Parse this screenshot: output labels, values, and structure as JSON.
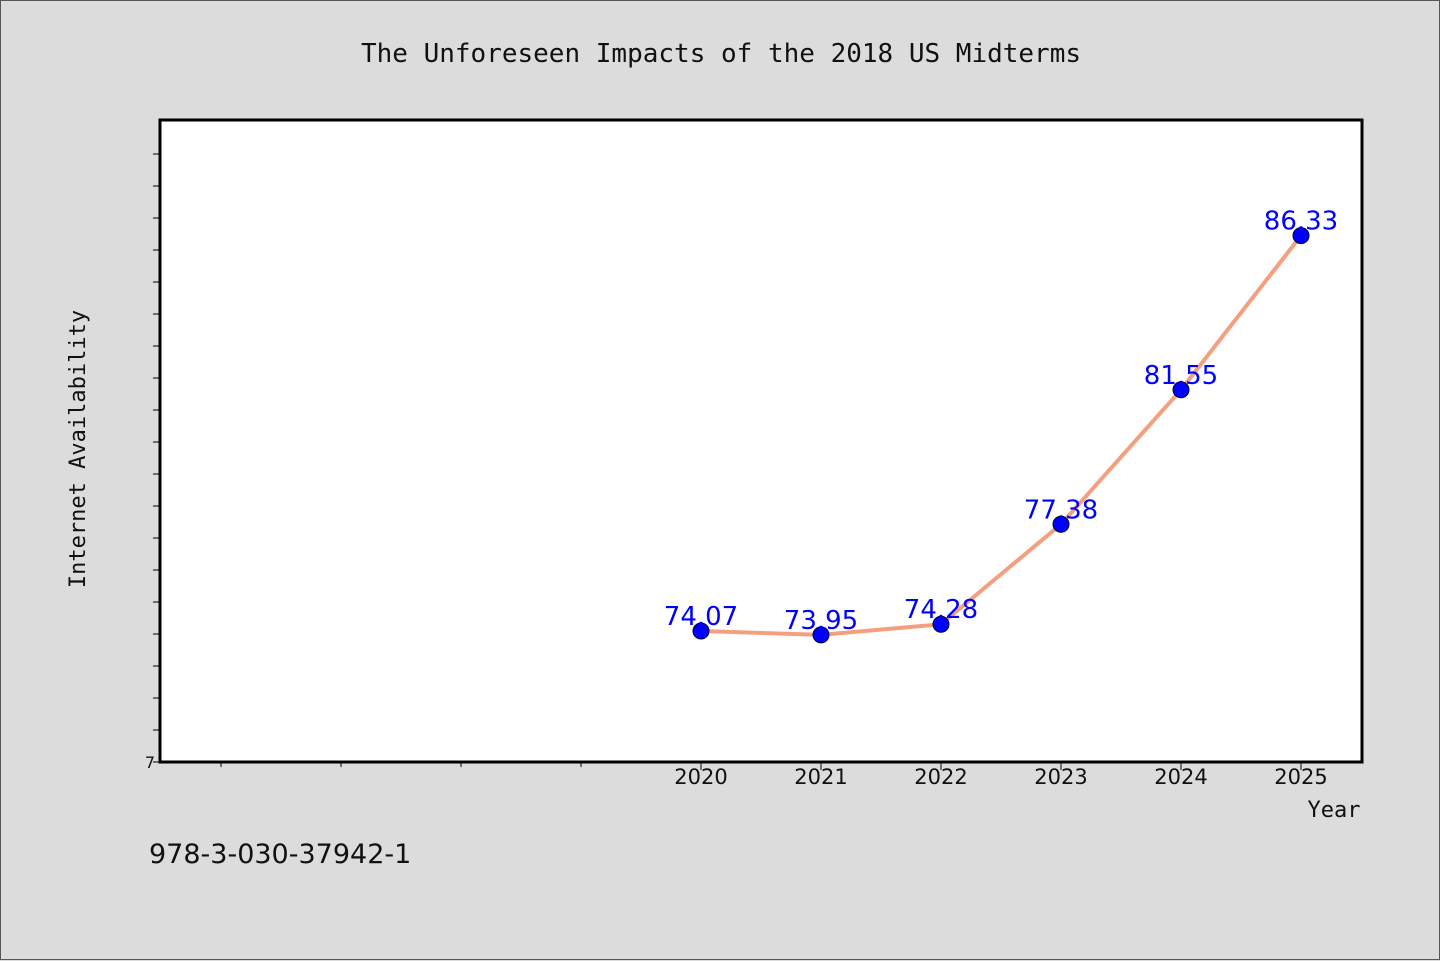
{
  "chart_data": {
    "type": "line",
    "title": "The Unforeseen Impacts of the 2018 US Midterms",
    "xlabel": "Year",
    "ylabel": "Internet Availability",
    "x": [
      "2020",
      "2021",
      "2022",
      "2023",
      "2024",
      "2025"
    ],
    "series": [
      {
        "values": [
          74.07,
          73.95,
          74.28,
          77.38,
          81.55,
          86.33
        ]
      }
    ],
    "data_labels": [
      "74.07",
      "73.95",
      "74.28",
      "77.38",
      "81.55",
      "86.33"
    ],
    "y_tick_labels": [
      "7"
    ],
    "ylim": [
      70,
      90
    ],
    "grid": false,
    "line_color": "#f4a07f",
    "marker_color": "#0000ff",
    "label_color": "#0000ff"
  },
  "footnote": "978-3-030-37942-1"
}
